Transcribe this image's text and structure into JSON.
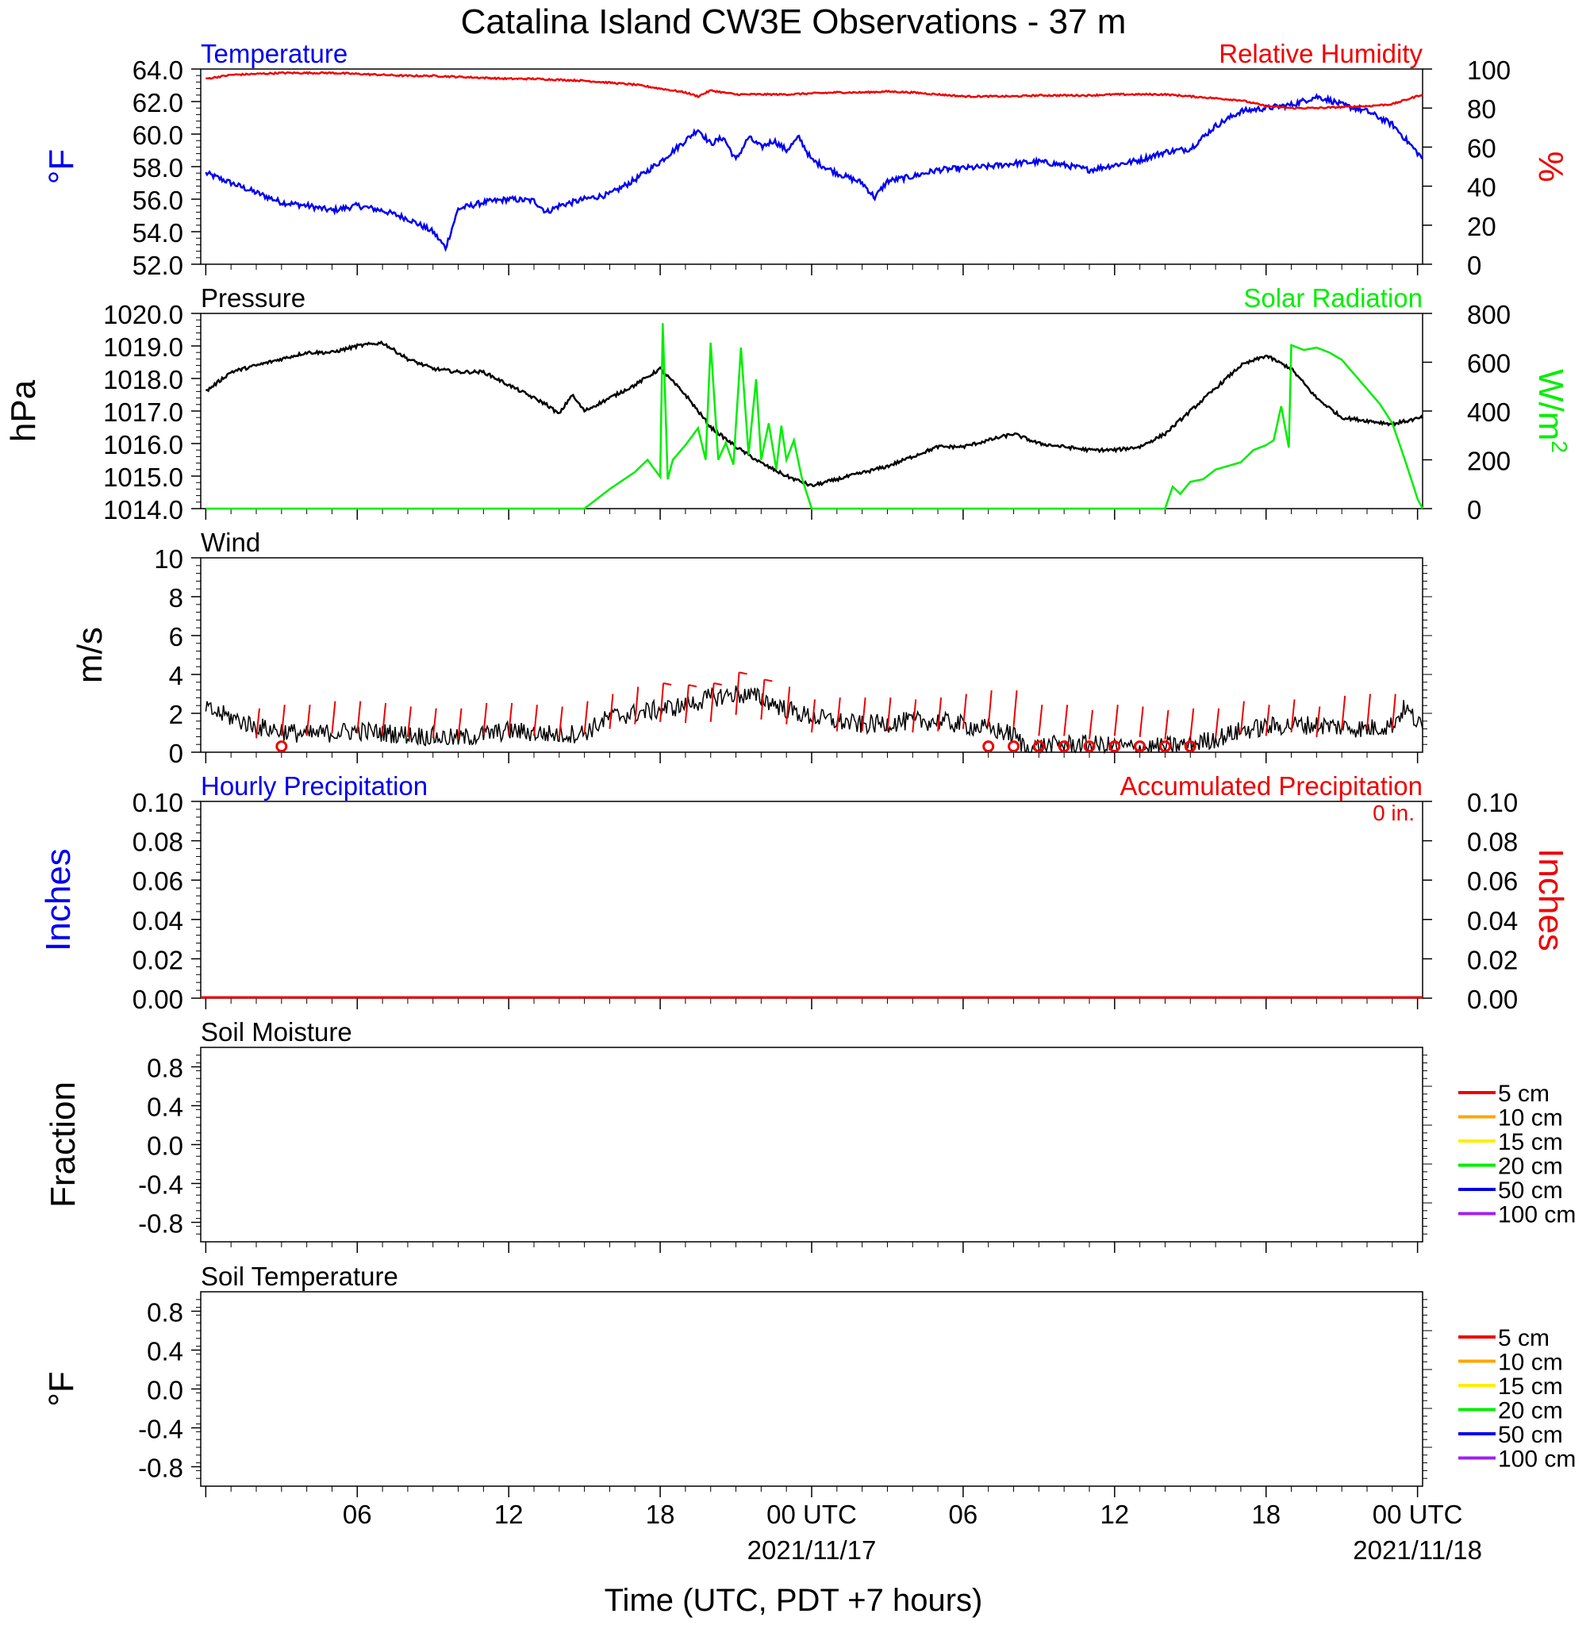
{
  "title": "Catalina Island CW3E Observations - 37 m",
  "xlabel": "Time (UTC, PDT +7 hours)",
  "x_ticks": [
    {
      "t": 6,
      "label": "06",
      "sub": ""
    },
    {
      "t": 12,
      "label": "12",
      "sub": ""
    },
    {
      "t": 18,
      "label": "18",
      "sub": ""
    },
    {
      "t": 24,
      "label": "00 UTC",
      "sub": "2021/11/17"
    },
    {
      "t": 30,
      "label": "06",
      "sub": ""
    },
    {
      "t": 36,
      "label": "12",
      "sub": ""
    },
    {
      "t": 42,
      "label": "18",
      "sub": ""
    },
    {
      "t": 48,
      "label": "00 UTC",
      "sub": "2021/11/18"
    }
  ],
  "colors": {
    "temperature": "#0000ee",
    "humidity": "#ee0000",
    "pressure": "#000000",
    "solar": "#00ee00",
    "wind": "#000000",
    "barb": "#ee0000",
    "precip_hourly": "#0000ee",
    "precip_accum": "#ee0000"
  },
  "soil_legend": [
    {
      "label": "5 cm",
      "color": "#ee0000"
    },
    {
      "label": "10 cm",
      "color": "#ffa500"
    },
    {
      "label": "15 cm",
      "color": "#ffee00"
    },
    {
      "label": "20 cm",
      "color": "#00ee00"
    },
    {
      "label": "50 cm",
      "color": "#0000ee"
    },
    {
      "label": "100 cm",
      "color": "#a020f0"
    }
  ],
  "chart_data": [
    {
      "type": "line",
      "panel": "temperature-humidity",
      "title": "Temperature",
      "title_right": "Relative Humidity",
      "ylabel": "°F",
      "ylabel_right": "%",
      "ylim": [
        52,
        64
      ],
      "yticks": [
        "64.0",
        "62.0",
        "60.0",
        "58.0",
        "56.0",
        "54.0",
        "52.0"
      ],
      "ylim_right": [
        0,
        100
      ],
      "yticks_right": [
        "100",
        "80",
        "60",
        "40",
        "20",
        "0"
      ],
      "series": [
        {
          "key": "temperature",
          "axis": "left",
          "x": [
            0,
            1,
            2,
            3,
            4,
            5,
            6,
            7,
            8,
            9,
            9.5,
            10,
            11,
            12,
            13,
            13.5,
            14,
            15,
            16,
            17,
            18,
            19,
            19.5,
            20,
            20.5,
            21,
            21.5,
            22,
            22.5,
            23,
            23.5,
            24,
            25,
            26,
            26.5,
            27,
            28,
            29,
            30,
            31,
            32,
            33,
            34,
            35,
            36,
            37,
            38,
            39,
            40,
            41,
            42,
            43,
            44,
            44.5,
            45,
            46,
            47,
            48.2
          ],
          "y": [
            57.6,
            57.0,
            56.4,
            55.8,
            55.6,
            55.3,
            55.6,
            55.3,
            54.8,
            54.0,
            53.0,
            55.4,
            55.8,
            56.0,
            55.9,
            55.2,
            55.6,
            56.0,
            56.3,
            57.2,
            58.3,
            59.6,
            60.3,
            59.4,
            59.8,
            58.4,
            59.8,
            59.2,
            59.6,
            59.0,
            59.8,
            58.4,
            57.6,
            57.0,
            56.1,
            57.1,
            57.4,
            57.8,
            57.9,
            58.0,
            58.2,
            58.3,
            58.1,
            57.8,
            58.1,
            58.4,
            58.9,
            59.1,
            60.5,
            61.4,
            61.6,
            61.8,
            62.3,
            62.1,
            61.8,
            61.4,
            60.6,
            58.5
          ]
        },
        {
          "key": "humidity",
          "axis": "right",
          "x": [
            0,
            1,
            2,
            3,
            4,
            5,
            6,
            7,
            8,
            9,
            10,
            11,
            12,
            13,
            14,
            15,
            16,
            17,
            18,
            19,
            19.5,
            20,
            20.5,
            21,
            22,
            23,
            24,
            25,
            26,
            27,
            28,
            29,
            30,
            31,
            32,
            33,
            34,
            35,
            36,
            37,
            38,
            39,
            40,
            41,
            42,
            43,
            44,
            45,
            46,
            47,
            48.2
          ],
          "y": [
            95,
            97,
            97.5,
            98,
            98,
            98,
            97.5,
            97,
            96.5,
            96.5,
            96,
            95.5,
            95,
            95,
            94.5,
            94,
            93,
            92,
            90,
            88,
            86,
            89,
            88,
            87,
            87,
            87,
            87.5,
            88,
            88,
            88.5,
            88,
            87,
            86,
            86,
            86,
            86.5,
            86.5,
            86.5,
            87,
            87,
            87,
            86,
            85,
            84,
            81,
            80,
            80,
            80.5,
            81,
            82,
            87
          ]
        }
      ]
    },
    {
      "type": "line",
      "panel": "pressure-solar",
      "title": "Pressure",
      "title_right": "Solar Radiation",
      "ylabel": "hPa",
      "ylabel_right": "W/m",
      "ylabel_right_sup": "2",
      "ylim": [
        1014,
        1020
      ],
      "yticks": [
        "1020.0",
        "1019.0",
        "1018.0",
        "1017.0",
        "1016.0",
        "1015.0",
        "1014.0"
      ],
      "ylim_right": [
        0,
        800
      ],
      "yticks_right": [
        "800",
        "600",
        "400",
        "200",
        "0"
      ],
      "series": [
        {
          "key": "pressure",
          "axis": "left",
          "x": [
            0,
            1,
            2,
            3,
            4,
            5,
            6,
            7,
            8,
            9,
            10,
            11,
            12,
            13,
            13.5,
            14,
            14.5,
            15,
            16,
            17,
            18,
            19,
            20,
            21,
            22,
            23,
            24,
            25,
            26,
            27,
            28,
            29,
            30,
            31,
            32,
            33,
            34,
            35,
            36,
            37,
            38,
            39,
            40,
            41,
            42,
            43,
            44,
            45,
            46,
            47,
            48.2
          ],
          "y": [
            1017.6,
            1018.2,
            1018.4,
            1018.6,
            1018.8,
            1018.8,
            1019.0,
            1019.1,
            1018.6,
            1018.3,
            1018.2,
            1018.2,
            1017.8,
            1017.4,
            1017.2,
            1016.9,
            1017.5,
            1017.0,
            1017.4,
            1017.8,
            1018.3,
            1017.5,
            1016.5,
            1015.9,
            1015.4,
            1015.0,
            1014.7,
            1014.9,
            1015.1,
            1015.3,
            1015.6,
            1015.9,
            1015.9,
            1016.1,
            1016.3,
            1016.0,
            1015.9,
            1015.8,
            1015.8,
            1015.9,
            1016.3,
            1017.0,
            1017.7,
            1018.4,
            1018.7,
            1018.3,
            1017.4,
            1016.8,
            1016.7,
            1016.6,
            1016.8
          ]
        },
        {
          "key": "solar",
          "axis": "right",
          "x": [
            0,
            13.5,
            14,
            15,
            16,
            17,
            17.5,
            18,
            18.1,
            18.3,
            18.5,
            19,
            19.5,
            19.8,
            20,
            20.3,
            20.6,
            20.9,
            21.2,
            21.5,
            21.8,
            22,
            22.3,
            22.6,
            22.8,
            23,
            23.3,
            23.6,
            24,
            25,
            26,
            27,
            28,
            29,
            30,
            31,
            32,
            33,
            34,
            35,
            36,
            37,
            37.5,
            38,
            38.3,
            38.6,
            39,
            39.5,
            40,
            41,
            41.5,
            42,
            42.3,
            42.6,
            42.9,
            43,
            43.5,
            44,
            44.5,
            45,
            45.5,
            46,
            46.5,
            47,
            47.5,
            48,
            48.2
          ],
          "y": [
            0,
            0,
            0,
            0,
            80,
            150,
            200,
            130,
            760,
            120,
            200,
            260,
            330,
            200,
            680,
            200,
            270,
            180,
            660,
            220,
            530,
            200,
            350,
            160,
            340,
            200,
            280,
            130,
            0,
            0,
            0,
            0,
            0,
            0,
            0,
            0,
            0,
            0,
            0,
            0,
            0,
            0,
            0,
            0,
            90,
            60,
            110,
            120,
            160,
            190,
            240,
            260,
            280,
            420,
            250,
            670,
            650,
            660,
            640,
            610,
            550,
            490,
            430,
            350,
            200,
            40,
            0
          ]
        }
      ]
    },
    {
      "type": "line",
      "panel": "wind",
      "title": "Wind",
      "ylabel": "m/s",
      "ylim": [
        0,
        10
      ],
      "yticks": [
        "10",
        "8",
        "6",
        "4",
        "2",
        "0"
      ],
      "series": [
        {
          "key": "wind",
          "axis": "left",
          "x": [
            0,
            1,
            2,
            3,
            4,
            5,
            6,
            7,
            8,
            9,
            10,
            11,
            12,
            13,
            14,
            15,
            16,
            17,
            18,
            19,
            20,
            21,
            22,
            23,
            24,
            25,
            26,
            27,
            28,
            29,
            30,
            31,
            32,
            32.5,
            33,
            34,
            35,
            36,
            37,
            38,
            39,
            40,
            41,
            42,
            43,
            44,
            45,
            46,
            47,
            47.5,
            48.2
          ],
          "y": [
            2.2,
            1.8,
            1.3,
            1.1,
            0.9,
            1.0,
            1.1,
            1.0,
            0.9,
            0.8,
            0.7,
            0.9,
            1.1,
            1.0,
            0.9,
            1.0,
            1.8,
            2.0,
            2.2,
            2.4,
            2.8,
            3.0,
            2.8,
            2.2,
            1.8,
            1.6,
            1.4,
            1.5,
            1.6,
            1.6,
            1.4,
            1.2,
            0.9,
            0.2,
            0.3,
            0.4,
            0.4,
            0.3,
            0.2,
            0.3,
            0.4,
            0.7,
            1.1,
            1.3,
            1.4,
            1.4,
            1.3,
            1.2,
            1.4,
            2.3,
            1.2
          ]
        }
      ],
      "barbs_start_hour": 2,
      "barb_speeds": [
        1.2,
        1.4,
        1.4,
        1.6,
        1.6,
        1.5,
        1.3,
        1.2,
        1.2,
        1.5,
        1.5,
        1.4,
        1.3,
        1.6,
        2.0,
        2.4,
        2.6,
        2.5,
        2.6,
        3.2,
        2.8,
        2.4,
        1.7,
        1.8,
        1.8,
        1.8,
        1.7,
        1.8,
        2.0,
        2.2,
        2.2,
        1.4,
        1.4,
        1.1,
        1.4,
        1.3,
        1.1,
        1.2,
        1.2,
        1.6,
        1.4,
        1.7,
        1.3,
        1.9,
        2.0,
        2.0
      ],
      "calm_hours": [
        3,
        31,
        32,
        33,
        34,
        35,
        36,
        37,
        38,
        39
      ]
    },
    {
      "type": "bar",
      "panel": "precipitation",
      "title": "Hourly Precipitation",
      "title_right": "Accumulated Precipitation",
      "annotation": "0 in.",
      "ylabel": "Inches",
      "ylabel_right": "Inches",
      "ylim": [
        0,
        0.1
      ],
      "yticks": [
        "0.10",
        "0.08",
        "0.06",
        "0.04",
        "0.02",
        "0.00"
      ],
      "ylim_right": [
        0,
        0.1
      ],
      "yticks_right": [
        "0.10",
        "0.08",
        "0.06",
        "0.04",
        "0.02",
        "0.00"
      ],
      "hourly_values": [],
      "accumulated_total": 0
    },
    {
      "type": "line",
      "panel": "soil-moisture",
      "title": "Soil Moisture",
      "ylabel": "Fraction",
      "ylim": [
        -1,
        1
      ],
      "yticks": [
        "0.8",
        "0.4",
        "0.0",
        "-0.4",
        "-0.8"
      ],
      "series": []
    },
    {
      "type": "line",
      "panel": "soil-temperature",
      "title": "Soil Temperature",
      "ylabel": "°F",
      "ylim": [
        -1,
        1
      ],
      "yticks": [
        "0.8",
        "0.4",
        "0.0",
        "-0.4",
        "-0.8"
      ],
      "series": []
    }
  ]
}
